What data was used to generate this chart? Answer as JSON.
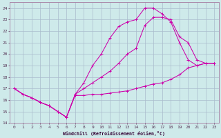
{
  "xlabel": "Windchill (Refroidissement éolien,°C)",
  "bg_color": "#ceeaea",
  "line_color": "#cc00aa",
  "grid_color": "#aabbcc",
  "axis_color": "#aa88aa",
  "tick_color": "#553355",
  "xlim": [
    -0.5,
    23.5
  ],
  "ylim": [
    14,
    24.5
  ],
  "xticks": [
    0,
    1,
    2,
    3,
    4,
    5,
    6,
    7,
    8,
    9,
    10,
    11,
    12,
    13,
    14,
    15,
    16,
    17,
    18,
    19,
    20,
    21,
    22,
    23
  ],
  "yticks": [
    14,
    15,
    16,
    17,
    18,
    19,
    20,
    21,
    22,
    23,
    24
  ],
  "line1_x": [
    0,
    1,
    2,
    3,
    4,
    5,
    6,
    7,
    8,
    9,
    10,
    11,
    12,
    13,
    14,
    15,
    16,
    17,
    18,
    19,
    20,
    21,
    22,
    23
  ],
  "line1_y": [
    17.0,
    16.5,
    16.2,
    15.8,
    15.5,
    15.0,
    14.5,
    16.4,
    16.4,
    16.5,
    16.5,
    16.6,
    16.7,
    16.8,
    17.0,
    17.2,
    17.4,
    17.5,
    17.8,
    18.2,
    18.8,
    19.0,
    19.2,
    19.2
  ],
  "line2_x": [
    0,
    1,
    2,
    3,
    4,
    5,
    6,
    7,
    8,
    9,
    10,
    11,
    12,
    13,
    14,
    15,
    16,
    17,
    18,
    19,
    20,
    21,
    22,
    23
  ],
  "line2_y": [
    17.0,
    16.5,
    16.2,
    15.8,
    15.5,
    15.0,
    14.5,
    16.5,
    17.5,
    19.0,
    20.0,
    21.4,
    22.4,
    22.8,
    23.0,
    24.0,
    24.0,
    23.5,
    22.8,
    21.0,
    19.5,
    19.0,
    19.2,
    19.2
  ],
  "line3_x": [
    0,
    1,
    2,
    3,
    4,
    5,
    6,
    7,
    8,
    9,
    10,
    11,
    12,
    13,
    14,
    15,
    16,
    17,
    18,
    19,
    20,
    21,
    22,
    23
  ],
  "line3_y": [
    17.0,
    16.5,
    16.2,
    15.8,
    15.5,
    15.0,
    14.5,
    16.5,
    17.0,
    17.5,
    18.0,
    18.5,
    19.2,
    20.0,
    20.5,
    22.5,
    23.2,
    23.2,
    23.0,
    21.5,
    21.0,
    19.5,
    19.2,
    19.2
  ]
}
